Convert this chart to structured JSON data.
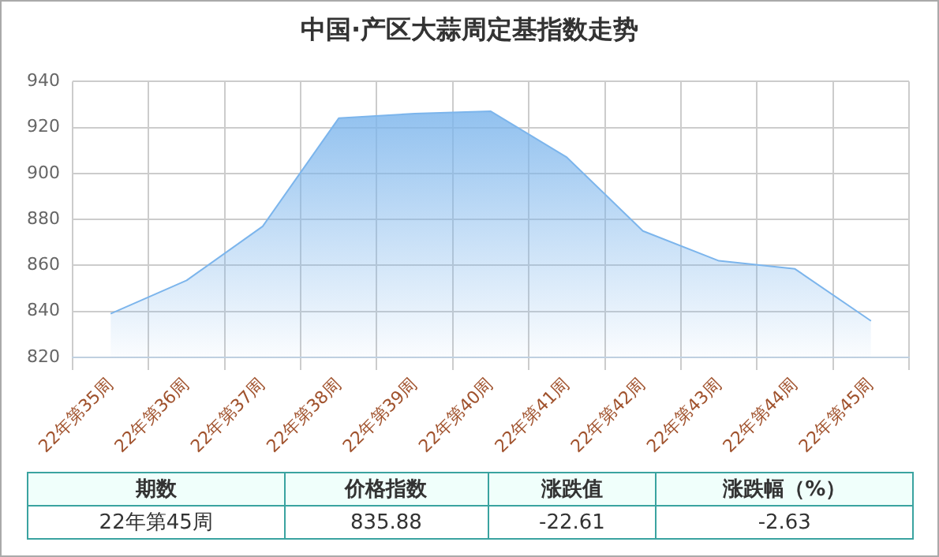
{
  "chart_data": {
    "type": "area",
    "title": "中国·产区大蒜周定基指数走势",
    "categories": [
      "22年第35周",
      "22年第36周",
      "22年第37周",
      "22年第38周",
      "22年第39周",
      "22年第40周",
      "22年第41周",
      "22年第42周",
      "22年第43周",
      "22年第44周",
      "22年第45周"
    ],
    "series": [
      {
        "color": "#7cb5ec",
        "values": [
          839,
          853.5,
          877,
          924,
          926,
          927,
          907,
          875,
          862,
          858.5,
          835.88
        ]
      }
    ],
    "ylim": [
      820,
      940
    ],
    "yticks": [
      820,
      840,
      860,
      880,
      900,
      920,
      940
    ],
    "grid": true,
    "annotations": [
      "期数",
      "价格指数",
      "涨跌值",
      "涨跌幅（%）",
      "22年第45周",
      "835.88",
      "-22.61",
      "-2.63"
    ]
  }
}
